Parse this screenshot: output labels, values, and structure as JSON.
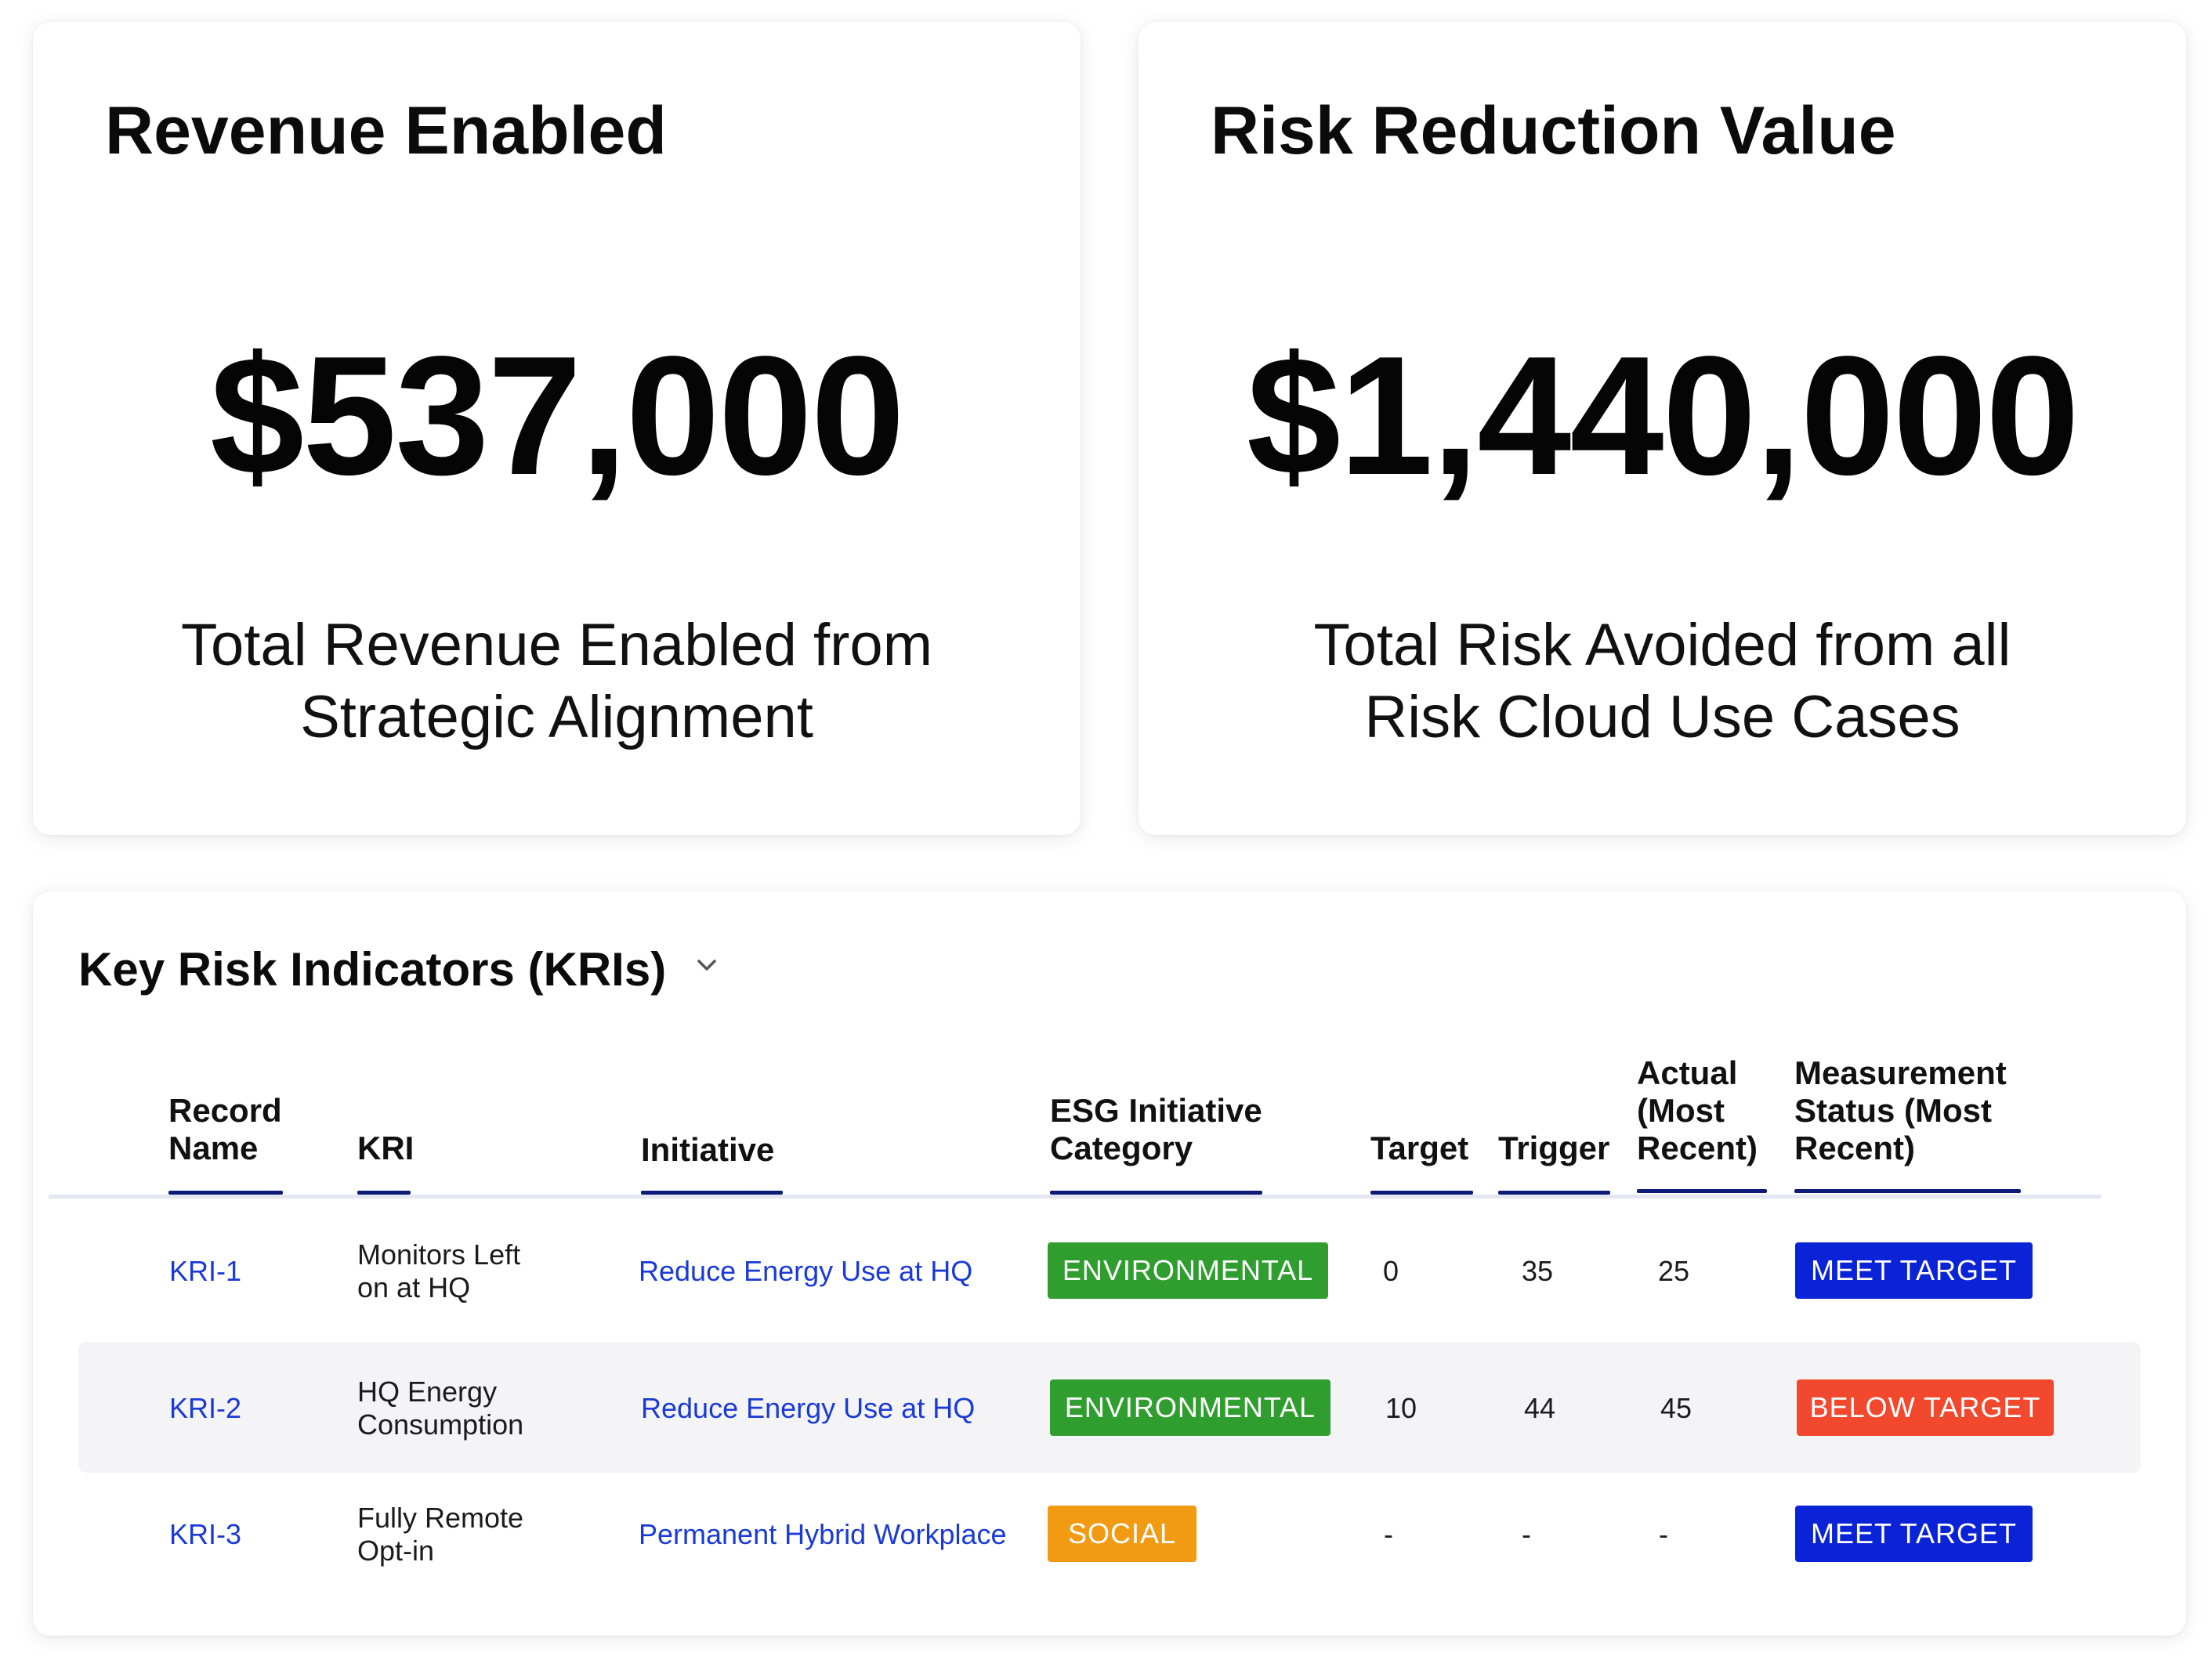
{
  "revenue_card": {
    "title": "Revenue Enabled",
    "value": "$537,000",
    "caption_line1": "Total Revenue Enabled from",
    "caption_line2": "Strategic Alignment"
  },
  "risk_card": {
    "title": "Risk Reduction Value",
    "value": "$1,440,000",
    "caption_line1": "Total Risk Avoided from all",
    "caption_line2": "Risk Cloud Use Cases"
  },
  "kri": {
    "title": "Key Risk Indicators (KRIs)",
    "chevron_icon": "chevron-down-icon",
    "columns": {
      "record_name": [
        "Record",
        "Name"
      ],
      "kri": [
        "KRI"
      ],
      "initiative": [
        "Initiative"
      ],
      "esg_category": [
        "ESG Initiative",
        "Category"
      ],
      "target": [
        "Target"
      ],
      "trigger": [
        "Trigger"
      ],
      "actual": [
        "Actual",
        "(Most",
        "Recent)"
      ],
      "status": [
        "Measurement",
        "Status (Most",
        "Recent)"
      ]
    },
    "rows": [
      {
        "record_name": "KRI-1",
        "kri": [
          "Monitors Left",
          "on at HQ"
        ],
        "initiative": "Reduce Energy Use at HQ",
        "category": "ENVIRONMENTAL",
        "category_color": "#2f9e2f",
        "target": "0",
        "trigger": "35",
        "actual": "25",
        "status": "MEET TARGET",
        "status_color": "#0b23d6"
      },
      {
        "record_name": "KRI-2",
        "kri": [
          "HQ Energy",
          "Consumption"
        ],
        "initiative": "Reduce Energy Use at HQ",
        "category": "ENVIRONMENTAL",
        "category_color": "#2f9e2f",
        "target": "10",
        "trigger": "44",
        "actual": "45",
        "status": "BELOW TARGET",
        "status_color": "#f2492e"
      },
      {
        "record_name": "KRI-3",
        "kri": [
          "Fully Remote",
          "Opt-in"
        ],
        "initiative": "Permanent Hybrid Workplace",
        "category": "SOCIAL",
        "category_color": "#f29b12",
        "target": "-",
        "trigger": "-",
        "actual": "-",
        "status": "MEET TARGET",
        "status_color": "#0b23d6"
      }
    ],
    "colors": {
      "link": "#1a3ad6",
      "header_underline": "#0c1a78",
      "row_alt_bg": "#f4f4f6"
    }
  }
}
